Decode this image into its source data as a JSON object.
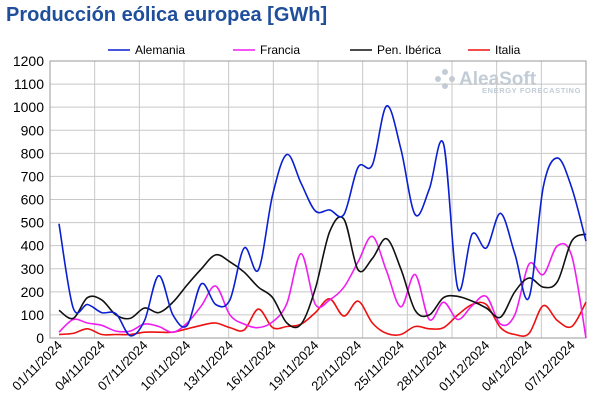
{
  "chart_data": {
    "type": "line",
    "title": "Producción eólica europea [GWh]",
    "ylim": [
      0,
      1200
    ],
    "yticks": [
      0,
      100,
      200,
      300,
      400,
      500,
      600,
      700,
      800,
      900,
      1000,
      1100,
      1200
    ],
    "grid": true,
    "legend_position": "top",
    "x_tick_labels": [
      "01/11/2024",
      "04/11/2024",
      "07/11/2024",
      "10/11/2024",
      "13/11/2024",
      "16/11/2024",
      "19/11/2024",
      "22/11/2024",
      "25/11/2024",
      "28/11/2024",
      "01/12/2024",
      "04/12/2024",
      "07/12/2024"
    ],
    "x": [
      "2024-11-01",
      "2024-11-02",
      "2024-11-03",
      "2024-11-04",
      "2024-11-05",
      "2024-11-06",
      "2024-11-07",
      "2024-11-08",
      "2024-11-09",
      "2024-11-10",
      "2024-11-11",
      "2024-11-12",
      "2024-11-13",
      "2024-11-14",
      "2024-11-15",
      "2024-11-16",
      "2024-11-17",
      "2024-11-18",
      "2024-11-19",
      "2024-11-20",
      "2024-11-21",
      "2024-11-22",
      "2024-11-23",
      "2024-11-24",
      "2024-11-25",
      "2024-11-26",
      "2024-11-27",
      "2024-11-28",
      "2024-11-29",
      "2024-11-30",
      "2024-12-01",
      "2024-12-02",
      "2024-12-03",
      "2024-12-04",
      "2024-12-05",
      "2024-12-06",
      "2024-12-07",
      "2024-12-08"
    ],
    "series": [
      {
        "name": "Alemania",
        "color": "#0a1fd2",
        "values": [
          495,
          130,
          145,
          110,
          105,
          10,
          75,
          270,
          100,
          55,
          235,
          145,
          165,
          390,
          295,
          620,
          795,
          670,
          550,
          555,
          535,
          740,
          750,
          1005,
          820,
          535,
          645,
          840,
          215,
          450,
          390,
          540,
          365,
          175,
          655,
          780,
          650,
          420
        ]
      },
      {
        "name": "Francia",
        "color": "#ef1ef0",
        "values": [
          25,
          80,
          65,
          55,
          30,
          30,
          60,
          50,
          25,
          65,
          140,
          225,
          100,
          60,
          45,
          70,
          150,
          365,
          145,
          165,
          220,
          330,
          440,
          290,
          135,
          275,
          80,
          155,
          80,
          140,
          180,
          60,
          100,
          320,
          275,
          400,
          355,
          0
        ]
      },
      {
        "name": "Pen. Ibérica",
        "color": "#111111",
        "values": [
          120,
          85,
          175,
          165,
          100,
          85,
          130,
          110,
          155,
          230,
          300,
          360,
          330,
          285,
          220,
          175,
          65,
          60,
          215,
          460,
          515,
          295,
          345,
          430,
          300,
          120,
          100,
          175,
          180,
          160,
          130,
          90,
          200,
          260,
          220,
          245,
          420,
          450
        ]
      },
      {
        "name": "Italia",
        "color": "#ee1111",
        "values": [
          15,
          20,
          40,
          15,
          15,
          15,
          25,
          25,
          25,
          40,
          55,
          65,
          45,
          35,
          125,
          45,
          50,
          60,
          110,
          170,
          95,
          160,
          65,
          20,
          15,
          50,
          40,
          45,
          100,
          145,
          145,
          45,
          15,
          20,
          140,
          75,
          50,
          155
        ]
      }
    ]
  },
  "logo": {
    "name": "AleaSoft",
    "tagline": "ENERGY FORECASTING"
  }
}
